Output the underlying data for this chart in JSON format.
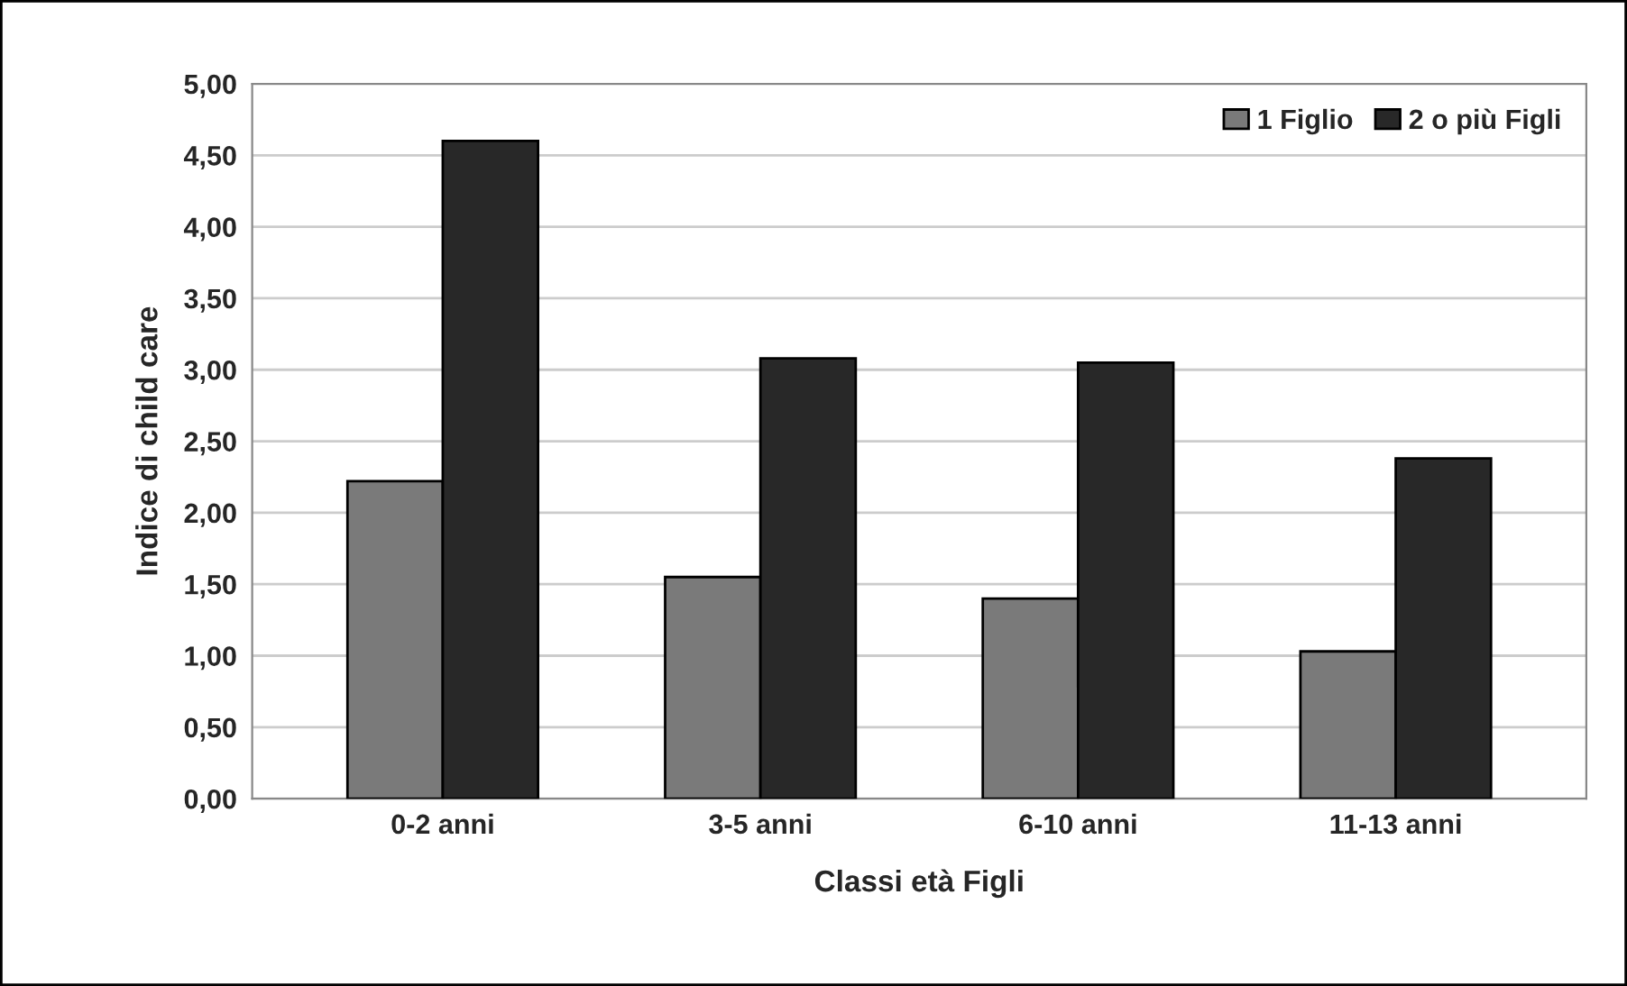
{
  "chart_data": {
    "type": "bar",
    "xlabel": "Classi età Figli",
    "ylabel": "Indice di child care",
    "categories": [
      "0-2 anni",
      "3-5 anni",
      "6-10 anni",
      "11-13 anni"
    ],
    "series": [
      {
        "name": "1 Figlio",
        "color": "#7a7a7a",
        "values": [
          2.22,
          1.55,
          1.4,
          1.03
        ]
      },
      {
        "name": "2 o più Figli",
        "color": "#282828",
        "values": [
          4.6,
          3.08,
          3.05,
          2.38
        ]
      }
    ],
    "ylim": [
      0,
      5
    ],
    "yticks": [
      {
        "value": 0,
        "label": "0,00"
      },
      {
        "value": 0.5,
        "label": "0,50"
      },
      {
        "value": 1,
        "label": "1,00"
      },
      {
        "value": 1.5,
        "label": "1,50"
      },
      {
        "value": 2,
        "label": "2,00"
      },
      {
        "value": 2.5,
        "label": "2,50"
      },
      {
        "value": 3,
        "label": "3,00"
      },
      {
        "value": 3.5,
        "label": "3,50"
      },
      {
        "value": 4,
        "label": "4,00"
      },
      {
        "value": 4.5,
        "label": "4,50"
      },
      {
        "value": 5,
        "label": "5,00"
      }
    ],
    "grid": "y",
    "legend": "top right"
  }
}
